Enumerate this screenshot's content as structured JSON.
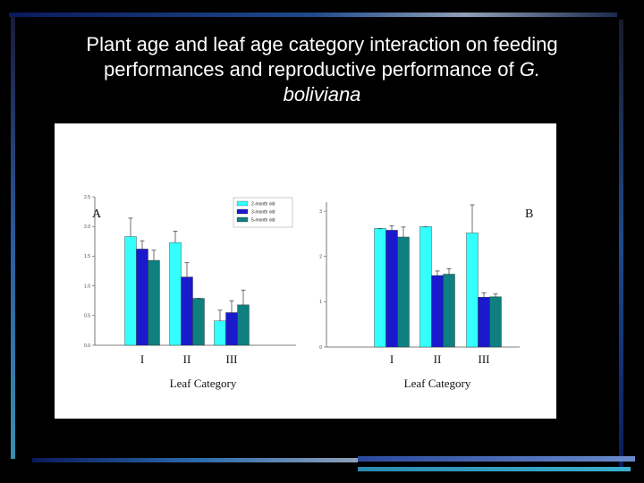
{
  "slide": {
    "title_line1": "Plant age and leaf age category interaction on feeding",
    "title_line2_prefix": "performances and reproductive performance of",
    "title_line2_italic": "G.",
    "title_line3_italic": "boliviana"
  },
  "colors": {
    "series": [
      "#33ffff",
      "#1a1acc",
      "#0f7f7f"
    ],
    "error_bar": "#333333",
    "frame": [
      "#0a1a5c",
      "#1e4a8c",
      "#8fa0b8",
      "#3a8fb0"
    ]
  },
  "chart_data": [
    {
      "type": "bar",
      "panel_label": "A",
      "categories": [
        "I",
        "II",
        "III"
      ],
      "xlabel": "Leaf Category",
      "ylabel": "",
      "ylim": [
        0,
        2.5
      ],
      "yticks": [
        "0.0",
        "0.5",
        "1.0",
        "1.5",
        "2.0",
        "2.5"
      ],
      "legend": {
        "position": "top-right",
        "entries": [
          "2-month old",
          "3-month old",
          "5-month old"
        ]
      },
      "series": [
        {
          "name": "2-month old",
          "values": [
            1.83,
            1.73,
            0.41
          ],
          "err": [
            0.31,
            0.19,
            0.18
          ]
        },
        {
          "name": "3-month old",
          "values": [
            1.62,
            1.15,
            0.55
          ],
          "err": [
            0.14,
            0.24,
            0.2
          ]
        },
        {
          "name": "5-month old",
          "values": [
            1.43,
            0.79,
            0.68
          ],
          "err": [
            0.17,
            0.0,
            0.25
          ]
        }
      ]
    },
    {
      "type": "bar",
      "panel_label": "B",
      "categories": [
        "I",
        "II",
        "III"
      ],
      "xlabel": "Leaf Category",
      "ylabel": "",
      "ylim": [
        0,
        3.2
      ],
      "yticks": [
        "0",
        "1",
        "2",
        "3"
      ],
      "series": [
        {
          "name": "2-month old",
          "values": [
            2.62,
            2.66,
            2.52
          ],
          "err": [
            0.0,
            0.0,
            0.62
          ]
        },
        {
          "name": "3-month old",
          "values": [
            2.58,
            1.58,
            1.1
          ],
          "err": [
            0.1,
            0.1,
            0.1
          ]
        },
        {
          "name": "5-month old",
          "values": [
            2.43,
            1.61,
            1.11
          ],
          "err": [
            0.22,
            0.12,
            0.06
          ]
        }
      ]
    }
  ]
}
